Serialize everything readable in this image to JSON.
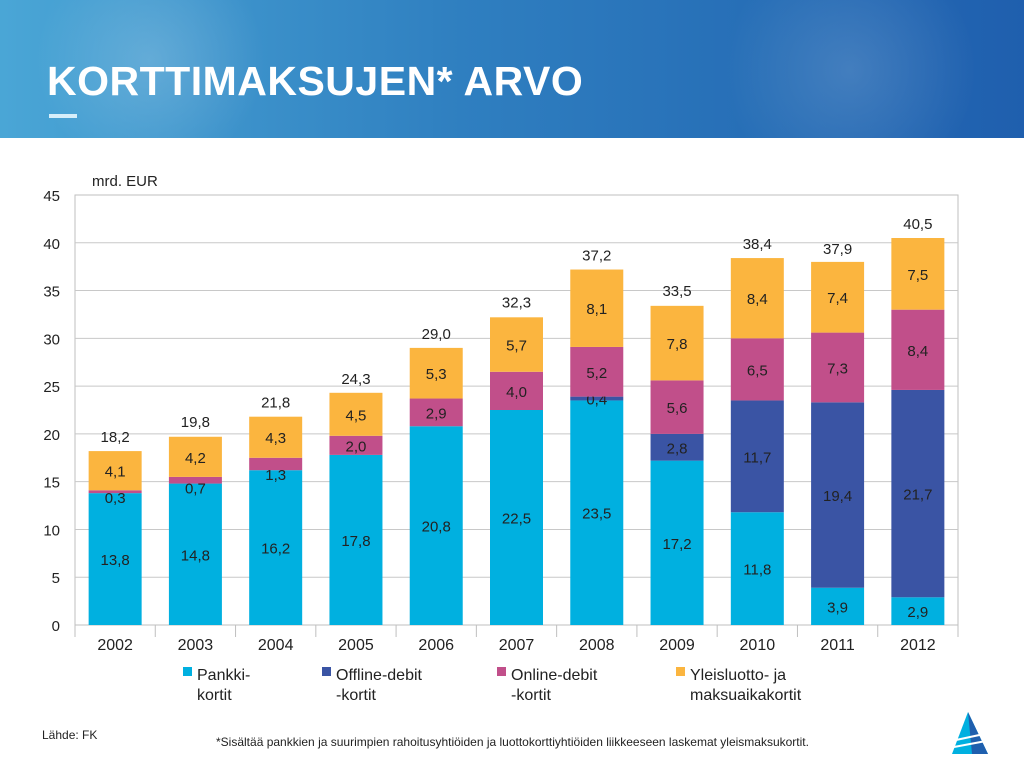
{
  "slide": {
    "title": "KORTTIMAKSUJEN* ARVO",
    "source": "Lähde: FK",
    "footnote": "*Sisältää pankkien ja suurimpien rahoitusyhtiöiden ja luottokorttiyhtiöiden liikkeeseen laskemat yleismaksukortit."
  },
  "chart_data": {
    "type": "bar",
    "stacked": true,
    "ylabel": "mrd. EUR",
    "ylim": [
      0,
      45
    ],
    "yticks": [
      0,
      5,
      10,
      15,
      20,
      25,
      30,
      35,
      40,
      45
    ],
    "grid": true,
    "legend": "bottom",
    "categories": [
      "2002",
      "2003",
      "2004",
      "2005",
      "2006",
      "2007",
      "2008",
      "2009",
      "2010",
      "2011",
      "2012"
    ],
    "series": [
      {
        "name": "Pankki- kortit",
        "color": "#00b0e0",
        "values": [
          13.8,
          14.8,
          16.2,
          17.8,
          20.8,
          22.5,
          23.5,
          17.2,
          11.8,
          3.9,
          2.9
        ],
        "labels": [
          "13,8",
          "14,8",
          "16,2",
          "17,8",
          "20,8",
          "22,5",
          "23,5",
          "17,2",
          "11,8",
          "3,9",
          "2,9"
        ]
      },
      {
        "name": "Offline-debit -kortit",
        "color": "#3a54a4",
        "values": [
          0,
          0,
          0,
          0,
          0,
          0,
          0.4,
          2.8,
          11.7,
          19.4,
          21.7
        ],
        "labels": [
          "",
          "",
          "",
          "",
          "",
          "",
          "0,4",
          "2,8",
          "11,7",
          "19,4",
          "21,7"
        ]
      },
      {
        "name": "Online-debit -kortit",
        "color": "#c14f8a",
        "values": [
          0.3,
          0.7,
          1.3,
          2.0,
          2.9,
          4.0,
          5.2,
          5.6,
          6.5,
          7.3,
          8.4
        ],
        "labels": [
          "0,3",
          "0,7",
          "1,3",
          "2,0",
          "2,9",
          "4,0",
          "5,2",
          "5,6",
          "6,5",
          "7,3",
          "8,4"
        ]
      },
      {
        "name": "Yleisluotto- ja maksuaikakortit",
        "color": "#fbb53f",
        "values": [
          4.1,
          4.2,
          4.3,
          4.5,
          5.3,
          5.7,
          8.1,
          7.8,
          8.4,
          7.4,
          7.5
        ],
        "labels": [
          "4,1",
          "4,2",
          "4,3",
          "4,5",
          "5,3",
          "5,7",
          "8,1",
          "7,8",
          "8,4",
          "7,4",
          "7,5"
        ]
      }
    ],
    "totals": [
      18.2,
      19.8,
      21.8,
      24.3,
      29.0,
      32.3,
      37.2,
      33.5,
      38.4,
      37.9,
      40.5
    ],
    "total_labels": [
      "18,2",
      "19,8",
      "21,8",
      "24,3",
      "29,0",
      "32,3",
      "37,2",
      "33,5",
      "38,4",
      "37,9",
      "40,5"
    ],
    "legend_entries": [
      {
        "line1": "Pankki-",
        "line2": "kortit"
      },
      {
        "line1": "Offline-debit",
        "line2": "-kortit"
      },
      {
        "line1": "Online-debit",
        "line2": "-kortit"
      },
      {
        "line1": "Yleisluotto- ja",
        "line2": "maksuaikakortit"
      }
    ]
  },
  "logo": {
    "name": "logo-icon",
    "colors": [
      "#00b0e0",
      "#1f5fae"
    ]
  }
}
